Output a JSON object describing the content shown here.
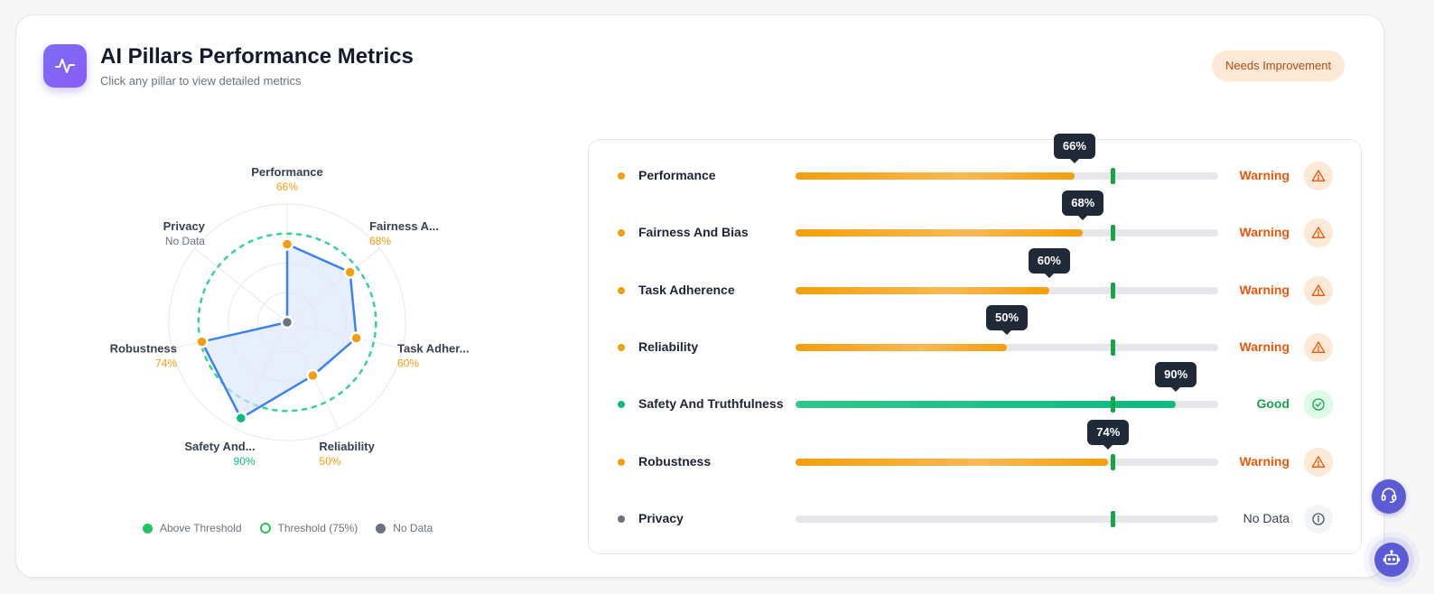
{
  "header": {
    "title": "AI Pillars Performance Metrics",
    "subtitle": "Click any pillar to view detailed metrics",
    "icon": "activity-icon",
    "status_badge": "Needs Improvement"
  },
  "colors": {
    "warning": "#f59e0b",
    "good": "#10b981",
    "nodata": "#6b7280",
    "threshold": "#34d399",
    "series_line": "#3b82f6",
    "series_fill": "#dbe6fb",
    "warning_text": "#ea580c",
    "good_text": "#16a34a",
    "accent": "#8b5cf6"
  },
  "chart_data": {
    "type": "radar",
    "threshold": 75,
    "range": [
      0,
      100
    ],
    "axes": [
      {
        "label": "Performance",
        "value": 66,
        "value_label": "66%",
        "status": "warning"
      },
      {
        "label": "Fairness A...",
        "value": 68,
        "value_label": "68%",
        "status": "warning"
      },
      {
        "label": "Task Adher...",
        "value": 60,
        "value_label": "60%",
        "status": "warning"
      },
      {
        "label": "Reliability",
        "value": 50,
        "value_label": "50%",
        "status": "warning"
      },
      {
        "label": "Safety And...",
        "value": 90,
        "value_label": "90%",
        "status": "good"
      },
      {
        "label": "Robustness",
        "value": 74,
        "value_label": "74%",
        "status": "warning"
      },
      {
        "label": "Privacy",
        "value": null,
        "value_label": "No Data",
        "status": "nodata"
      }
    ],
    "legend": [
      {
        "label": "Above Threshold",
        "style": "filled",
        "color": "#22c55e"
      },
      {
        "label": "Threshold (75%)",
        "style": "ring",
        "color": "#22c55e"
      },
      {
        "label": "No Data",
        "style": "filled",
        "color": "#6b7280"
      }
    ]
  },
  "metrics": {
    "threshold": 75,
    "rows": [
      {
        "name": "Performance",
        "value": 66,
        "value_label": "66%",
        "status": "warning",
        "status_label": "Warning",
        "icon": "warning-triangle-icon"
      },
      {
        "name": "Fairness And Bias",
        "value": 68,
        "value_label": "68%",
        "status": "warning",
        "status_label": "Warning",
        "icon": "warning-triangle-icon"
      },
      {
        "name": "Task Adherence",
        "value": 60,
        "value_label": "60%",
        "status": "warning",
        "status_label": "Warning",
        "icon": "warning-triangle-icon"
      },
      {
        "name": "Reliability",
        "value": 50,
        "value_label": "50%",
        "status": "warning",
        "status_label": "Warning",
        "icon": "warning-triangle-icon"
      },
      {
        "name": "Safety And Truthfulness",
        "value": 90,
        "value_label": "90%",
        "status": "good",
        "status_label": "Good",
        "icon": "check-circle-icon"
      },
      {
        "name": "Robustness",
        "value": 74,
        "value_label": "74%",
        "status": "warning",
        "status_label": "Warning",
        "icon": "warning-triangle-icon"
      },
      {
        "name": "Privacy",
        "value": null,
        "value_label": "",
        "status": "nodata",
        "status_label": "No Data",
        "icon": "info-icon"
      }
    ]
  },
  "floating": {
    "support_icon": "headset-icon",
    "assistant_icon": "robot-icon"
  }
}
